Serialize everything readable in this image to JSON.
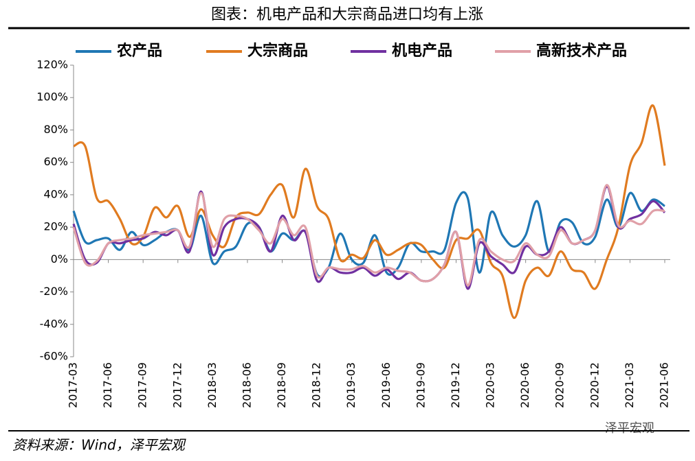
{
  "chart_data": {
    "type": "line",
    "title": "图表：机电产品和大宗商品进口均有上涨",
    "source": "资料来源：Wind，泽平宏观",
    "watermark": "泽平宏观",
    "categories": [
      "2017-03",
      null,
      null,
      "2017-06",
      null,
      null,
      "2017-09",
      null,
      null,
      "2017-12",
      null,
      null,
      "2018-03",
      null,
      null,
      "2018-06",
      null,
      null,
      "2018-09",
      null,
      null,
      "2018-12",
      null,
      null,
      "2019-03",
      null,
      null,
      "2019-06",
      null,
      null,
      "2019-09",
      null,
      null,
      "2019-12",
      null,
      null,
      "2020-03",
      null,
      null,
      "2020-06",
      null,
      null,
      "2020-09",
      null,
      null,
      "2020-12",
      null,
      null,
      "2021-03",
      null,
      null,
      "2021-06"
    ],
    "ylim": [
      -60,
      120
    ],
    "yticks": [
      {
        "value": -60,
        "label": "-60%"
      },
      {
        "value": -40,
        "label": "-40%"
      },
      {
        "value": -20,
        "label": "-20%"
      },
      {
        "value": 0,
        "label": "0%"
      },
      {
        "value": 20,
        "label": "20%"
      },
      {
        "value": 40,
        "label": "40%"
      },
      {
        "value": 60,
        "label": "60%"
      },
      {
        "value": 80,
        "label": "80%"
      },
      {
        "value": 100,
        "label": "100%"
      },
      {
        "value": 120,
        "label": "120%"
      }
    ],
    "legend": "top",
    "series": [
      {
        "name": "农产品",
        "color": "#1f77b4",
        "values": [
          30,
          11,
          12,
          13,
          6,
          17,
          9,
          12,
          17,
          18,
          6,
          27,
          -2,
          5,
          8,
          22,
          20,
          5,
          16,
          12,
          17,
          -9,
          -5,
          16,
          0,
          -2,
          15,
          -8,
          -5,
          10,
          5,
          5,
          6,
          35,
          38,
          -8,
          29,
          15,
          8,
          15,
          36,
          5,
          23,
          23,
          10,
          14,
          37,
          20,
          41,
          30,
          37,
          33
        ]
      },
      {
        "name": "大宗商品",
        "color": "#e07b20",
        "values": [
          70,
          70,
          38,
          36,
          25,
          10,
          14,
          32,
          26,
          33,
          14,
          31,
          15,
          8,
          26,
          29,
          28,
          40,
          46,
          26,
          56,
          33,
          25,
          0,
          3,
          1,
          12,
          3,
          6,
          10,
          9,
          0,
          -5,
          12,
          13,
          18,
          -2,
          -10,
          -36,
          -13,
          -5,
          -10,
          5,
          -6,
          -8,
          -18,
          0,
          20,
          58,
          72,
          95,
          58
        ]
      },
      {
        "name": "机电产品",
        "color": "#7030a0",
        "values": [
          22,
          0,
          -2,
          10,
          10,
          12,
          13,
          17,
          15,
          18,
          5,
          42,
          3,
          20,
          25,
          25,
          20,
          5,
          27,
          12,
          17,
          -13,
          -5,
          -8,
          -8,
          -5,
          -10,
          -6,
          -12,
          -8,
          -13,
          -12,
          -3,
          17,
          -18,
          10,
          2,
          -3,
          -8,
          8,
          3,
          5,
          20,
          10,
          12,
          18,
          45,
          20,
          25,
          28,
          36,
          29
        ]
      },
      {
        "name": "高新技术产品",
        "color": "#e0a0a8",
        "values": [
          20,
          -2,
          -1,
          10,
          12,
          13,
          15,
          16,
          17,
          18,
          8,
          41,
          8,
          25,
          27,
          25,
          18,
          10,
          25,
          15,
          20,
          -10,
          -5,
          -6,
          -6,
          -4,
          -8,
          -5,
          -7,
          -8,
          -13,
          -12,
          -3,
          17,
          -16,
          12,
          5,
          0,
          -1,
          10,
          3,
          2,
          18,
          10,
          12,
          18,
          46,
          21,
          24,
          22,
          30,
          30
        ]
      }
    ]
  }
}
